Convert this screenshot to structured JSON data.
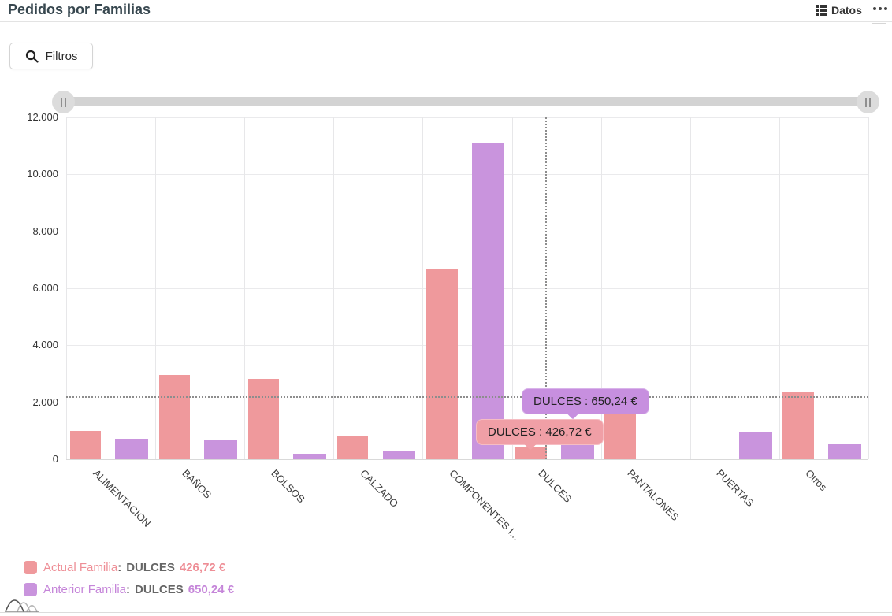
{
  "header": {
    "title": "Pedidos por Familias",
    "datos_label": "Datos",
    "datos_icon": "grid-icon",
    "more_icon": "ellipsis-icon"
  },
  "toolbar": {
    "filtros_label": "Filtros",
    "filtros_icon": "search-icon"
  },
  "slider": {
    "left_handle_icon": "pause-grip-icon",
    "right_handle_icon": "pause-grip-icon"
  },
  "colors": {
    "actual": "#ef999c",
    "anterior": "#c994dd",
    "actual_tooltip": "#f09fa6",
    "anterior_tooltip": "#c78fdf",
    "actual_text": "#ee8e96",
    "anterior_text": "#c585d9"
  },
  "chart_data": {
    "type": "bar",
    "title": "Pedidos por Familias",
    "categories": [
      "ALIMENTACION",
      "BAÑOS",
      "BOLSOS",
      "CALZADO",
      "COMPONENTES I...",
      "DULCES",
      "PANTALONES",
      "PUERTAS",
      "Otros"
    ],
    "series": [
      {
        "name": "Actual Familia",
        "color": "#ef999c",
        "values": [
          1000,
          2960,
          2820,
          830,
          6700,
          426.72,
          1850,
          null,
          2350
        ]
      },
      {
        "name": "Anterior Familia",
        "color": "#c994dd",
        "values": [
          720,
          670,
          195,
          315,
          11100,
          650.24,
          null,
          940,
          530
        ]
      }
    ],
    "xlabel": "",
    "ylabel": "",
    "ylim": [
      0,
      12000
    ],
    "ytick_step": 2000,
    "ytick_labels": [
      "0",
      "2.000",
      "4.000",
      "6.000",
      "8.000",
      "10.000",
      "12.000"
    ],
    "grid": true,
    "average_line": 2200,
    "crosshair_category": "DULCES",
    "legend_position": "bottom-left"
  },
  "tooltips": {
    "anterior": {
      "text": "DULCES : 650,24 €"
    },
    "actual": {
      "text": "DULCES : 426,72 €"
    }
  },
  "legend": [
    {
      "series": "Actual Familia",
      "colon": ":",
      "category": "DULCES",
      "value": "426,72 €"
    },
    {
      "series": "Anterior Familia",
      "colon": ":",
      "category": "DULCES",
      "value": "650,24 €"
    }
  ]
}
